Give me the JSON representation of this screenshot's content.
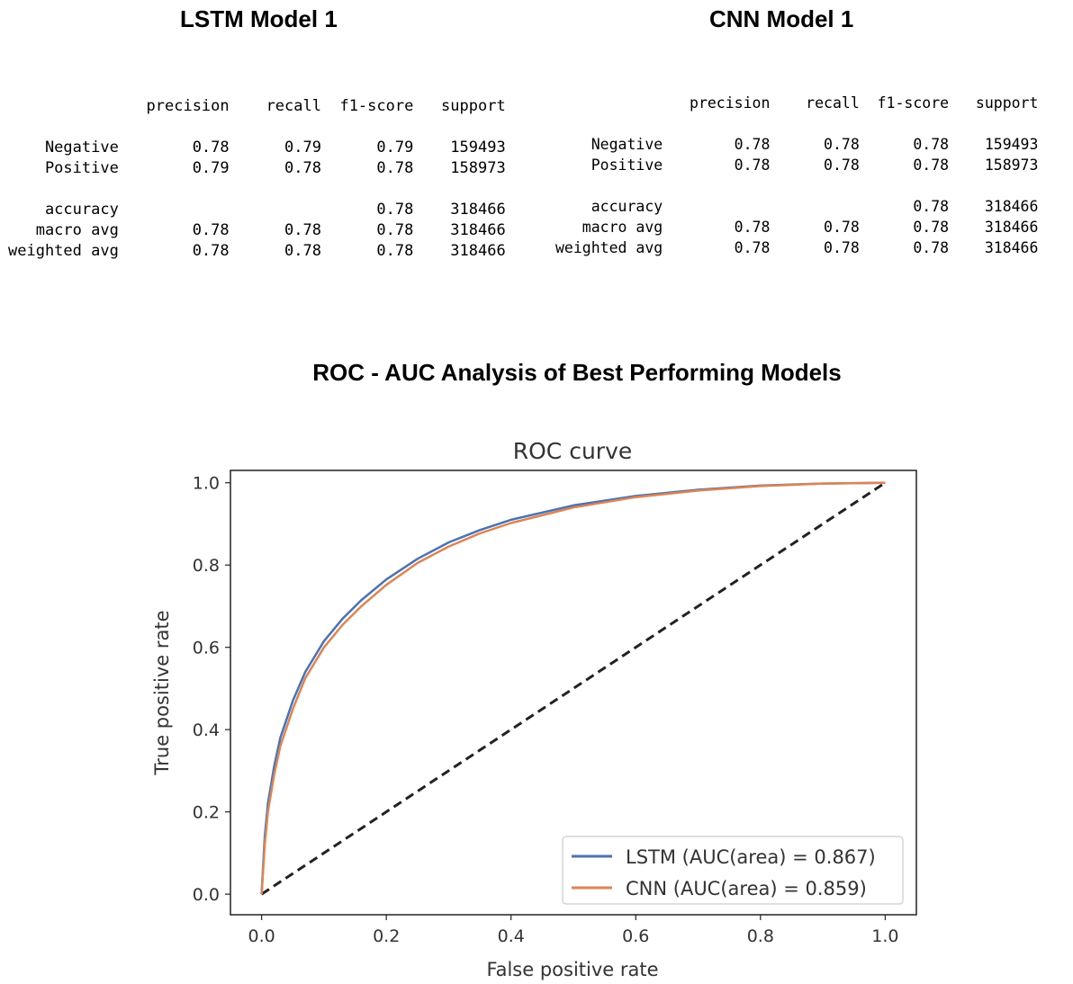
{
  "lstm_report": {
    "title": "LSTM Model 1",
    "header": [
      "precision",
      "recall",
      "f1-score",
      "support"
    ],
    "rows": [
      {
        "label": "Negative",
        "values": [
          "0.78",
          "0.79",
          "0.79",
          "159493"
        ]
      },
      {
        "label": "Positive",
        "values": [
          "0.79",
          "0.78",
          "0.78",
          "158973"
        ]
      },
      {
        "label": "",
        "values": [
          "",
          "",
          "",
          ""
        ]
      },
      {
        "label": "accuracy",
        "values": [
          "",
          "",
          "0.78",
          "318466"
        ]
      },
      {
        "label": "macro avg",
        "values": [
          "0.78",
          "0.78",
          "0.78",
          "318466"
        ]
      },
      {
        "label": "weighted avg",
        "values": [
          "0.78",
          "0.78",
          "0.78",
          "318466"
        ]
      }
    ]
  },
  "cnn_report": {
    "title": "CNN Model 1",
    "header": [
      "precision",
      "recall",
      "f1-score",
      "support"
    ],
    "rows": [
      {
        "label": "Negative",
        "values": [
          "0.78",
          "0.78",
          "0.78",
          "159493"
        ]
      },
      {
        "label": "Positive",
        "values": [
          "0.78",
          "0.78",
          "0.78",
          "158973"
        ]
      },
      {
        "label": "",
        "values": [
          "",
          "",
          "",
          ""
        ]
      },
      {
        "label": "accuracy",
        "values": [
          "",
          "",
          "0.78",
          "318466"
        ]
      },
      {
        "label": "macro avg",
        "values": [
          "0.78",
          "0.78",
          "0.78",
          "318466"
        ]
      },
      {
        "label": "weighted avg",
        "values": [
          "0.78",
          "0.78",
          "0.78",
          "318466"
        ]
      }
    ]
  },
  "section_heading": "ROC - AUC Analysis of Best Performing Models",
  "chart_data": {
    "type": "line",
    "title": "ROC curve",
    "xlabel": "False positive rate",
    "ylabel": "True positive rate",
    "xlim": [
      -0.05,
      1.05
    ],
    "ylim": [
      -0.05,
      1.03
    ],
    "xticks": [
      "0.0",
      "0.2",
      "0.4",
      "0.6",
      "0.8",
      "1.0"
    ],
    "yticks": [
      "0.0",
      "0.2",
      "0.4",
      "0.6",
      "0.8",
      "1.0"
    ],
    "grid": false,
    "legend_position": "lower-right",
    "series": [
      {
        "name": "LSTM (AUC(area) = 0.867)",
        "color": "#4c72b0",
        "x": [
          0,
          0.005,
          0.01,
          0.02,
          0.03,
          0.05,
          0.07,
          0.1,
          0.13,
          0.16,
          0.2,
          0.25,
          0.3,
          0.35,
          0.4,
          0.5,
          0.6,
          0.7,
          0.8,
          0.9,
          1.0
        ],
        "y": [
          0,
          0.14,
          0.22,
          0.31,
          0.38,
          0.47,
          0.54,
          0.615,
          0.67,
          0.715,
          0.765,
          0.815,
          0.855,
          0.885,
          0.91,
          0.945,
          0.968,
          0.983,
          0.993,
          0.998,
          1.0
        ]
      },
      {
        "name": "CNN (AUC(area) = 0.859)",
        "color": "#dd8452",
        "x": [
          0,
          0.005,
          0.01,
          0.02,
          0.03,
          0.05,
          0.07,
          0.1,
          0.13,
          0.16,
          0.2,
          0.25,
          0.3,
          0.35,
          0.4,
          0.5,
          0.6,
          0.7,
          0.8,
          0.9,
          1.0
        ],
        "y": [
          0,
          0.12,
          0.2,
          0.29,
          0.36,
          0.45,
          0.525,
          0.6,
          0.655,
          0.7,
          0.752,
          0.805,
          0.845,
          0.877,
          0.902,
          0.94,
          0.965,
          0.981,
          0.992,
          0.998,
          1.0
        ]
      },
      {
        "name": "",
        "color": "#222222",
        "dashed": true,
        "x": [
          0,
          1
        ],
        "y": [
          0,
          1
        ]
      }
    ]
  }
}
